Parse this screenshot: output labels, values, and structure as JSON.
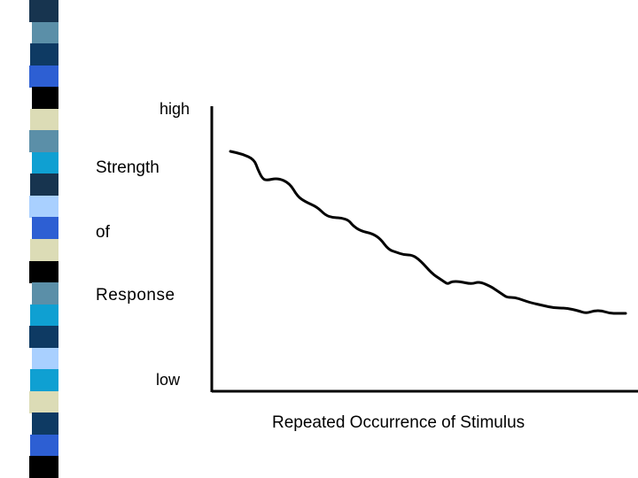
{
  "chart_data": {
    "type": "line",
    "title": "",
    "ylabel_lines": [
      "Strength",
      "of",
      "Response"
    ],
    "y_tick_labels": {
      "top": "high",
      "bottom": "low"
    },
    "xlabel": "Repeated Occurrence of Stimulus",
    "ylim": [
      0,
      100
    ],
    "xlim": [
      0,
      100
    ],
    "grid": false,
    "series": [
      {
        "name": "Response strength",
        "x": [
          0,
          3,
          6,
          7,
          8,
          9,
          12,
          15,
          17,
          19,
          22,
          24,
          26,
          28,
          30,
          31,
          33,
          36,
          38,
          40,
          42,
          44,
          46,
          48,
          51,
          53,
          54,
          55,
          56,
          58,
          61,
          63,
          66,
          67,
          69,
          70,
          72,
          74,
          76,
          79,
          82,
          85,
          88,
          90,
          92,
          94,
          96,
          98,
          100
        ],
        "y": [
          83,
          82,
          80,
          76,
          73,
          72,
          73,
          71,
          66,
          64,
          62,
          59,
          58,
          58,
          57,
          55,
          53,
          52,
          50,
          46,
          45,
          44,
          44,
          42,
          37,
          35,
          34,
          33,
          34,
          34,
          33,
          34,
          32,
          31,
          29,
          28,
          28,
          27,
          26,
          25,
          24,
          24,
          23,
          22,
          23,
          23,
          22,
          22,
          22
        ]
      }
    ]
  },
  "decor": {
    "strip_colors": [
      "#17344f",
      "#5b8fa8",
      "#0e3a63",
      "#2d5fd3",
      "#000000",
      "#dcdcb6",
      "#5b8fa8",
      "#0fa0d2",
      "#17344f",
      "#a9d0ff",
      "#2d5fd3",
      "#dcdcb6",
      "#000000",
      "#5b8fa8",
      "#0fa0d2",
      "#0e3a63",
      "#a9d0ff",
      "#0fa0d2",
      "#dcdcb6",
      "#0e3a63",
      "#2d5fd3",
      "#000000"
    ],
    "line_color": "#000000"
  }
}
